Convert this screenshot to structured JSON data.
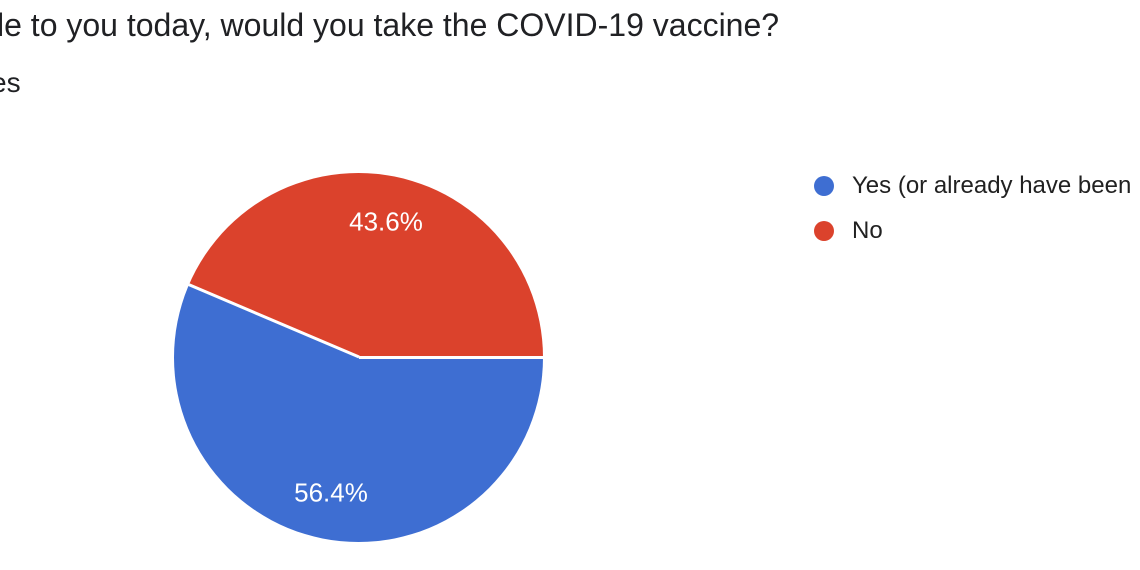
{
  "header": {
    "question_title_visible": "le to you today, would you take the COVID-19 vaccine?",
    "responses_text_visible": "es"
  },
  "chart_data": {
    "type": "pie",
    "title": "le to you today, would you take the COVID-19 vaccine?",
    "slices": [
      {
        "label": "Yes (or already have been",
        "percent": 56.4,
        "display_label": "56.4%",
        "color": "#3e6ed2"
      },
      {
        "label": "No",
        "percent": 43.6,
        "display_label": "43.6%",
        "color": "#db422c"
      }
    ],
    "start_position": "east",
    "direction": "clockwise",
    "slice_border_color": "#ffffff",
    "slice_label_color": "#ffffff",
    "legend_position": "right"
  },
  "legend": {
    "items": [
      {
        "label": "Yes (or already have been",
        "color": "#3e6ed2"
      },
      {
        "label": "No",
        "color": "#db422c"
      }
    ]
  },
  "colors": {
    "background": "#ffffff",
    "title_text": "#202124",
    "legend_text": "#212121",
    "slice_label_text": "#ffffff"
  }
}
